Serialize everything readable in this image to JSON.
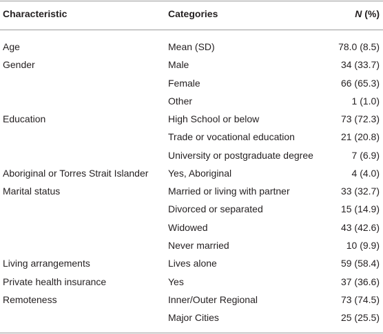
{
  "header": {
    "characteristic": "Characteristic",
    "categories": "Categories",
    "n_symbol": "N",
    "n_suffix": "(%)"
  },
  "table": {
    "rows": [
      [
        "Age",
        "Mean (SD)",
        "78.0 (8.5)"
      ],
      [
        "Gender",
        "Male",
        "34 (33.7)"
      ],
      [
        null,
        "Female",
        "66 (65.3)"
      ],
      [
        null,
        "Other",
        "1 (1.0)"
      ],
      [
        "Education",
        "High School or below",
        "73 (72.3)"
      ],
      [
        null,
        "Trade or vocational education",
        "21 (20.8)"
      ],
      [
        null,
        "University or postgraduate degree",
        "7 (6.9)"
      ],
      [
        "Aboriginal or Torres Strait Islander",
        "Yes, Aboriginal",
        "4 (4.0)"
      ],
      [
        "Marital status",
        "Married or living with partner",
        "33 (32.7)"
      ],
      [
        null,
        "Divorced or separated",
        "15 (14.9)"
      ],
      [
        null,
        "Widowed",
        "43 (42.6)"
      ],
      [
        null,
        "Never married",
        "10 (9.9)"
      ],
      [
        "Living arrangements",
        "Lives alone",
        "59 (58.4)"
      ],
      [
        "Private health insurance",
        "Yes",
        "37 (36.6)"
      ],
      [
        "Remoteness",
        "Inner/Outer Regional",
        "73 (74.5)"
      ],
      [
        null,
        "Major Cities",
        "25 (25.5)"
      ]
    ]
  }
}
